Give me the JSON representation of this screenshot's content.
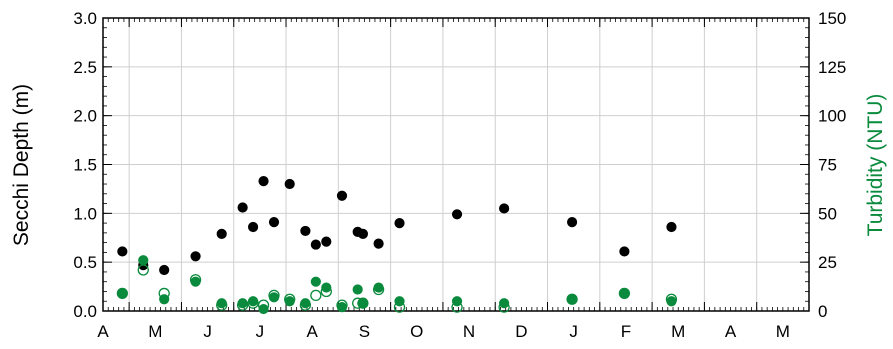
{
  "chart_data": {
    "type": "scatter",
    "title": "",
    "xlabel": "",
    "ylabel": "Secchi Depth (m)",
    "ylabel_right": "Turbidity (NTU)",
    "ylabel_right_color": "#0a8a3c",
    "ylim": [
      0,
      3.0
    ],
    "ylim_right": [
      0,
      150
    ],
    "yticks": [
      "0.0",
      "0.5",
      "1.0",
      "1.5",
      "2.0",
      "2.5",
      "3.0"
    ],
    "yticks_right": [
      "0",
      "25",
      "50",
      "75",
      "100",
      "125",
      "150"
    ],
    "grid": true,
    "xlim": [
      0,
      13.5
    ],
    "x_unit": "months (A = 0)",
    "xtick_labels": [
      "A",
      "M",
      "J",
      "J",
      "A",
      "S",
      "O",
      "N",
      "D",
      "J",
      "F",
      "M",
      "A",
      "M"
    ],
    "series": [
      {
        "name": "",
        "axis": "left",
        "marker": "filled",
        "color": "#000000",
        "points": [
          {
            "x": 0.37,
            "y": 0.61
          },
          {
            "x": 0.77,
            "y": 0.47
          },
          {
            "x": 1.17,
            "y": 0.42
          },
          {
            "x": 1.77,
            "y": 0.56
          },
          {
            "x": 2.27,
            "y": 0.79
          },
          {
            "x": 2.67,
            "y": 1.06
          },
          {
            "x": 2.87,
            "y": 0.86
          },
          {
            "x": 3.07,
            "y": 1.33
          },
          {
            "x": 3.27,
            "y": 0.91
          },
          {
            "x": 3.57,
            "y": 1.3
          },
          {
            "x": 3.87,
            "y": 0.82
          },
          {
            "x": 4.07,
            "y": 0.68
          },
          {
            "x": 4.27,
            "y": 0.71
          },
          {
            "x": 4.57,
            "y": 1.18
          },
          {
            "x": 4.87,
            "y": 0.81
          },
          {
            "x": 4.97,
            "y": 0.79
          },
          {
            "x": 5.27,
            "y": 0.69
          },
          {
            "x": 5.67,
            "y": 0.9
          },
          {
            "x": 6.77,
            "y": 0.99
          },
          {
            "x": 7.67,
            "y": 1.05
          },
          {
            "x": 8.97,
            "y": 0.91
          },
          {
            "x": 9.97,
            "y": 0.61
          },
          {
            "x": 10.87,
            "y": 0.86
          }
        ]
      },
      {
        "name": "",
        "axis": "right",
        "marker": "filled",
        "color": "#0a8a3c",
        "points": [
          {
            "x": 0.37,
            "y": 9
          },
          {
            "x": 0.77,
            "y": 26
          },
          {
            "x": 1.17,
            "y": 6
          },
          {
            "x": 1.77,
            "y": 15
          },
          {
            "x": 2.27,
            "y": 4
          },
          {
            "x": 2.67,
            "y": 4
          },
          {
            "x": 2.87,
            "y": 5
          },
          {
            "x": 3.07,
            "y": 1
          },
          {
            "x": 3.27,
            "y": 7
          },
          {
            "x": 3.57,
            "y": 5
          },
          {
            "x": 3.87,
            "y": 4
          },
          {
            "x": 4.07,
            "y": 15
          },
          {
            "x": 4.27,
            "y": 12
          },
          {
            "x": 4.57,
            "y": 2
          },
          {
            "x": 4.87,
            "y": 11
          },
          {
            "x": 4.97,
            "y": 4
          },
          {
            "x": 5.27,
            "y": 12
          },
          {
            "x": 5.67,
            "y": 5
          },
          {
            "x": 6.77,
            "y": 5
          },
          {
            "x": 7.67,
            "y": 4
          },
          {
            "x": 8.97,
            "y": 6
          },
          {
            "x": 9.97,
            "y": 9
          },
          {
            "x": 10.87,
            "y": 5
          }
        ]
      },
      {
        "name": "",
        "axis": "right",
        "marker": "open",
        "color": "#0a8a3c",
        "points": [
          {
            "x": 0.37,
            "y": 9
          },
          {
            "x": 0.77,
            "y": 21
          },
          {
            "x": 1.17,
            "y": 9
          },
          {
            "x": 1.77,
            "y": 16
          },
          {
            "x": 2.27,
            "y": 3
          },
          {
            "x": 2.67,
            "y": 3
          },
          {
            "x": 2.87,
            "y": 4
          },
          {
            "x": 3.07,
            "y": 3
          },
          {
            "x": 3.27,
            "y": 8
          },
          {
            "x": 3.57,
            "y": 6
          },
          {
            "x": 3.87,
            "y": 3
          },
          {
            "x": 4.07,
            "y": 8
          },
          {
            "x": 4.27,
            "y": 10
          },
          {
            "x": 4.57,
            "y": 3
          },
          {
            "x": 4.87,
            "y": 4
          },
          {
            "x": 4.97,
            "y": 4
          },
          {
            "x": 5.27,
            "y": 11
          },
          {
            "x": 5.67,
            "y": 2
          },
          {
            "x": 6.77,
            "y": 2
          },
          {
            "x": 7.67,
            "y": 2
          },
          {
            "x": 8.97,
            "y": 6
          },
          {
            "x": 9.97,
            "y": 9
          },
          {
            "x": 10.87,
            "y": 6
          }
        ]
      }
    ]
  }
}
